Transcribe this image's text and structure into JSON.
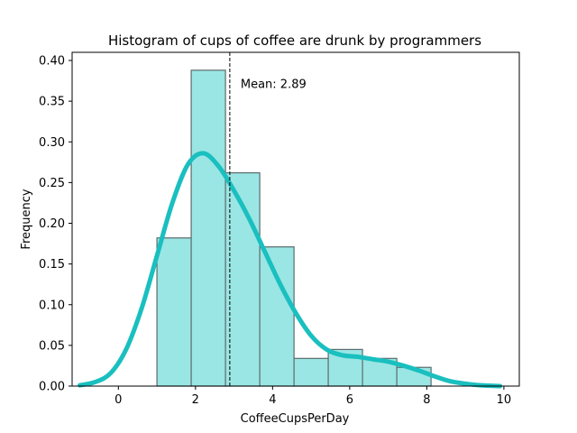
{
  "chart_data": {
    "type": "bar",
    "title": "Histogram of cups of coffee are drunk by programmers",
    "xlabel": "CoffeeCupsPerDay",
    "ylabel": "Frequency",
    "xlim": [
      -1.2,
      10.4
    ],
    "ylim": [
      0,
      0.41
    ],
    "xticks": [
      0,
      2,
      4,
      6,
      8,
      10
    ],
    "xtick_labels": [
      "0",
      "2",
      "4",
      "6",
      "8",
      "10"
    ],
    "yticks": [
      0,
      0.05,
      0.1,
      0.15,
      0.2,
      0.25,
      0.3,
      0.35,
      0.4
    ],
    "ytick_labels": [
      "0.00",
      "0.05",
      "0.10",
      "0.15",
      "0.20",
      "0.25",
      "0.30",
      "0.35",
      "0.40"
    ],
    "bins": [
      {
        "x0": 1.0,
        "x1": 1.889,
        "value": 0.182
      },
      {
        "x0": 1.889,
        "x1": 2.778,
        "value": 0.388
      },
      {
        "x0": 2.778,
        "x1": 3.667,
        "value": 0.262
      },
      {
        "x0": 3.667,
        "x1": 4.556,
        "value": 0.171
      },
      {
        "x0": 4.556,
        "x1": 5.444,
        "value": 0.034
      },
      {
        "x0": 5.444,
        "x1": 6.333,
        "value": 0.045
      },
      {
        "x0": 6.333,
        "x1": 7.222,
        "value": 0.034
      },
      {
        "x0": 7.222,
        "x1": 8.111,
        "value": 0.023
      }
    ],
    "kde": {
      "x": [
        -1.0,
        -0.6,
        -0.2,
        0.2,
        0.6,
        1.0,
        1.4,
        1.8,
        2.2,
        2.6,
        3.0,
        3.4,
        3.8,
        4.2,
        4.6,
        5.0,
        5.4,
        5.8,
        6.2,
        6.6,
        7.0,
        7.4,
        7.8,
        8.2,
        8.6,
        9.0,
        9.4,
        9.9
      ],
      "y": [
        0.001,
        0.005,
        0.016,
        0.045,
        0.095,
        0.16,
        0.225,
        0.272,
        0.286,
        0.27,
        0.24,
        0.205,
        0.165,
        0.125,
        0.09,
        0.062,
        0.045,
        0.038,
        0.036,
        0.033,
        0.03,
        0.025,
        0.019,
        0.012,
        0.006,
        0.003,
        0.001,
        0.0
      ]
    },
    "mean": 2.89,
    "mean_label": "Mean: 2.89",
    "bar_fill": "#9ae6e4",
    "bar_edge": "#5c6b6b",
    "kde_color": "#1abfbf",
    "grid": false,
    "legend": "none"
  }
}
